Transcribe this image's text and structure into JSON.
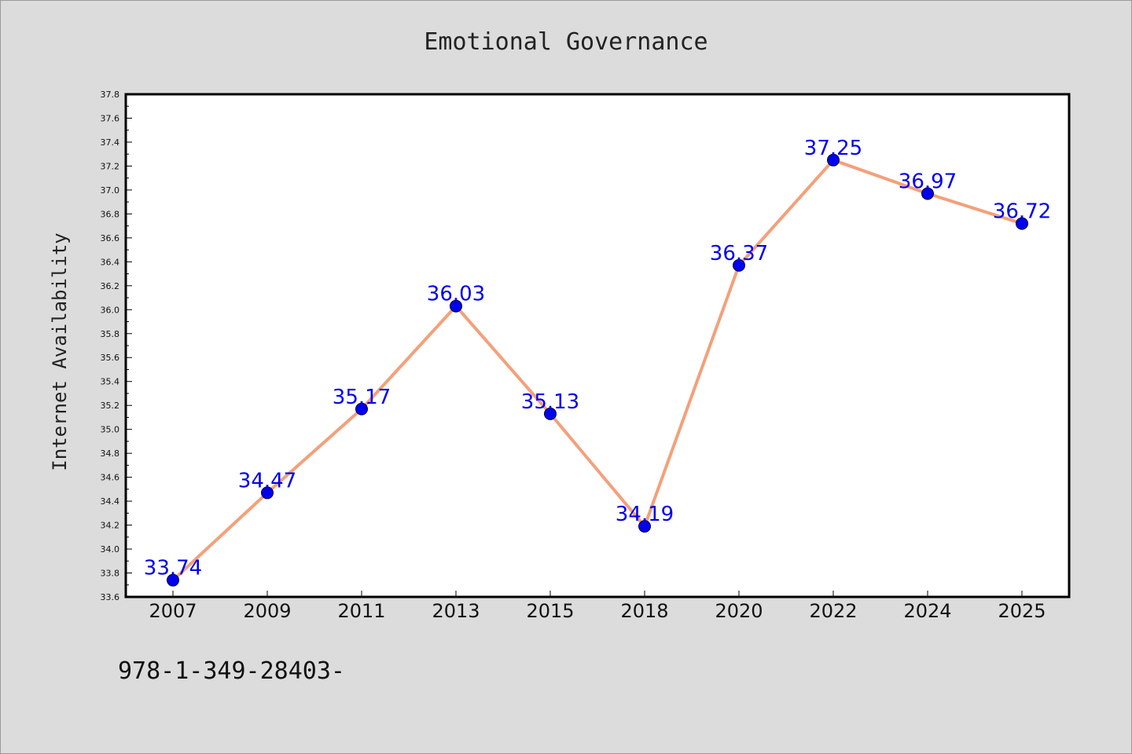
{
  "chart_data": {
    "type": "line",
    "title": "Emotional Governance",
    "ylabel": "Internet Availability",
    "xlabel": "",
    "categories": [
      "2007",
      "2009",
      "2011",
      "2013",
      "2015",
      "2018",
      "2020",
      "2022",
      "2024",
      "2025"
    ],
    "series": [
      {
        "values": [
          33.74,
          34.47,
          35.17,
          36.03,
          35.13,
          34.19,
          36.37,
          37.25,
          36.97,
          36.72
        ],
        "labels": [
          "33.74",
          "34.47",
          "35.17",
          "36.03",
          "35.13",
          "34.19",
          "36.37",
          "37.25",
          "36.97",
          "36.72"
        ]
      }
    ],
    "ylim": [
      33.6,
      37.8
    ],
    "yticks": [
      "33.6",
      "33.8",
      "34.0",
      "34.2",
      "34.4",
      "34.6",
      "34.8",
      "35.0",
      "35.2",
      "35.4",
      "35.6",
      "35.8",
      "36.0",
      "36.2",
      "36.4",
      "36.6",
      "36.8",
      "37.0",
      "37.2",
      "37.4",
      "37.6",
      "37.8"
    ],
    "grid": false,
    "legend": "none",
    "colors": {
      "line": "#f4a07a",
      "marker": "#0000ee",
      "data_label": "#0000ee",
      "plot_background": "#ffffff",
      "figure_background": "#dcdcdc"
    }
  },
  "footer": {
    "text": "978-1-349-28403-"
  }
}
